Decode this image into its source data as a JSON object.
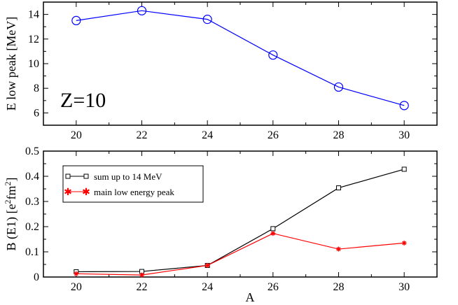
{
  "chart_data": [
    {
      "type": "line",
      "xlabel": "",
      "ylabel": "E low peak [MeV]",
      "xlim": [
        19,
        31
      ],
      "ylim": [
        5,
        15
      ],
      "xticks": [
        20,
        22,
        24,
        26,
        28,
        30
      ],
      "yticks": [
        6,
        8,
        10,
        12,
        14
      ],
      "annotation": "Z=10",
      "grid": false,
      "series": [
        {
          "color": "#0000ff",
          "marker": "circle",
          "x": [
            20,
            22,
            24,
            26,
            28,
            30
          ],
          "y": [
            13.5,
            14.3,
            13.6,
            10.7,
            8.1,
            6.6
          ]
        }
      ]
    },
    {
      "type": "line",
      "xlabel": "A",
      "ylabel_main": "B (E1) [e",
      "ylabel_sup1": "2",
      "ylabel_mid": "fm",
      "ylabel_sup2": "2",
      "ylabel_end": "]",
      "xlim": [
        19,
        31
      ],
      "ylim": [
        0,
        0.5
      ],
      "xticks": [
        20,
        22,
        24,
        26,
        28,
        30
      ],
      "yticks": [
        0,
        0.1,
        0.2,
        0.3,
        0.4,
        0.5
      ],
      "ytick_labels": [
        "0",
        "0.1",
        "0.2",
        "0.3",
        "0.4",
        "0.5"
      ],
      "legend_position": "top-left",
      "grid": false,
      "series": [
        {
          "name": "sum up to 14 MeV",
          "color": "#000000",
          "marker": "square",
          "x": [
            20,
            22,
            24,
            26,
            28,
            30
          ],
          "y": [
            0.021,
            0.022,
            0.046,
            0.192,
            0.354,
            0.428
          ]
        },
        {
          "name": "main low energy peak",
          "color": "#ff0000",
          "marker": "star",
          "x": [
            20,
            22,
            24,
            26,
            28,
            30
          ],
          "y": [
            0.013,
            0.008,
            0.046,
            0.173,
            0.111,
            0.135
          ]
        }
      ]
    }
  ]
}
